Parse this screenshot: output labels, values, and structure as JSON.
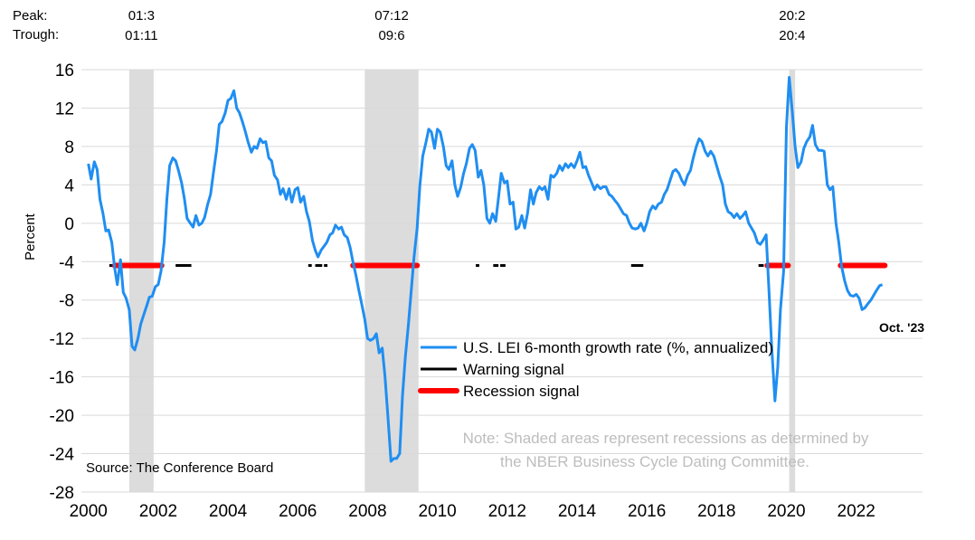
{
  "chart_data": {
    "type": "line",
    "ylabel": "Percent",
    "ylim": [
      -28,
      16
    ],
    "yticks": [
      16,
      12,
      8,
      4,
      0,
      -4,
      -8,
      -12,
      -16,
      -20,
      -24,
      -28
    ],
    "xlim": [
      1999.8,
      2023.9
    ],
    "xticks": [
      2000,
      2002,
      2004,
      2006,
      2008,
      2010,
      2012,
      2014,
      2016,
      2018,
      2020,
      2022
    ],
    "grid": true,
    "recessions_header": {
      "peak_label": "Peak:",
      "trough_label": "Trough:"
    },
    "recessions": [
      {
        "peak": "01:3",
        "trough": "01:11",
        "start": 2001.17,
        "end": 2001.87
      },
      {
        "peak": "07:12",
        "trough": "09:6",
        "start": 2007.92,
        "end": 2009.46
      },
      {
        "peak": "20:2",
        "trough": "20:4",
        "start": 2020.08,
        "end": 2020.25
      }
    ],
    "series": [
      {
        "name": "U.S. LEI 6-month growth rate (%, annualized)",
        "color": "#1f8ef1",
        "points": [
          [
            2000.0,
            6.2
          ],
          [
            2000.08,
            4.6
          ],
          [
            2000.17,
            6.4
          ],
          [
            2000.25,
            5.6
          ],
          [
            2000.33,
            2.5
          ],
          [
            2000.42,
            1.0
          ],
          [
            2000.5,
            -0.8
          ],
          [
            2000.58,
            -0.7
          ],
          [
            2000.67,
            -2.0
          ],
          [
            2000.75,
            -4.6
          ],
          [
            2000.83,
            -6.4
          ],
          [
            2000.92,
            -3.8
          ],
          [
            2001.0,
            -7.2
          ],
          [
            2001.08,
            -7.8
          ],
          [
            2001.17,
            -9.0
          ],
          [
            2001.25,
            -12.8
          ],
          [
            2001.33,
            -13.2
          ],
          [
            2001.42,
            -12.0
          ],
          [
            2001.5,
            -10.5
          ],
          [
            2001.58,
            -9.6
          ],
          [
            2001.67,
            -8.6
          ],
          [
            2001.75,
            -7.7
          ],
          [
            2001.83,
            -7.6
          ],
          [
            2001.92,
            -6.6
          ],
          [
            2002.0,
            -6.4
          ],
          [
            2002.08,
            -5.0
          ],
          [
            2002.17,
            -2.0
          ],
          [
            2002.25,
            2.5
          ],
          [
            2002.33,
            6.0
          ],
          [
            2002.42,
            6.8
          ],
          [
            2002.5,
            6.5
          ],
          [
            2002.58,
            5.5
          ],
          [
            2002.67,
            4.2
          ],
          [
            2002.75,
            2.6
          ],
          [
            2002.83,
            0.5
          ],
          [
            2002.92,
            0.0
          ],
          [
            2003.0,
            -0.4
          ],
          [
            2003.08,
            0.8
          ],
          [
            2003.17,
            -0.2
          ],
          [
            2003.25,
            0.0
          ],
          [
            2003.33,
            0.6
          ],
          [
            2003.42,
            2.0
          ],
          [
            2003.5,
            3.0
          ],
          [
            2003.58,
            5.2
          ],
          [
            2003.67,
            7.5
          ],
          [
            2003.75,
            10.3
          ],
          [
            2003.83,
            10.6
          ],
          [
            2003.92,
            11.5
          ],
          [
            2004.0,
            12.8
          ],
          [
            2004.08,
            13.0
          ],
          [
            2004.17,
            13.8
          ],
          [
            2004.25,
            12.0
          ],
          [
            2004.33,
            11.5
          ],
          [
            2004.42,
            10.5
          ],
          [
            2004.5,
            9.5
          ],
          [
            2004.58,
            8.4
          ],
          [
            2004.67,
            7.4
          ],
          [
            2004.75,
            8.0
          ],
          [
            2004.83,
            7.8
          ],
          [
            2004.92,
            8.8
          ],
          [
            2005.0,
            8.4
          ],
          [
            2005.08,
            8.5
          ],
          [
            2005.17,
            6.8
          ],
          [
            2005.25,
            6.5
          ],
          [
            2005.33,
            5.0
          ],
          [
            2005.42,
            4.5
          ],
          [
            2005.5,
            3.0
          ],
          [
            2005.58,
            3.6
          ],
          [
            2005.67,
            2.5
          ],
          [
            2005.75,
            3.6
          ],
          [
            2005.83,
            2.2
          ],
          [
            2005.92,
            3.5
          ],
          [
            2006.0,
            3.7
          ],
          [
            2006.08,
            2.2
          ],
          [
            2006.17,
            2.8
          ],
          [
            2006.25,
            1.2
          ],
          [
            2006.33,
            0.2
          ],
          [
            2006.42,
            -1.8
          ],
          [
            2006.5,
            -2.8
          ],
          [
            2006.58,
            -3.5
          ],
          [
            2006.67,
            -2.8
          ],
          [
            2006.75,
            -2.4
          ],
          [
            2006.83,
            -2.0
          ],
          [
            2006.92,
            -1.2
          ],
          [
            2007.0,
            -1.0
          ],
          [
            2007.08,
            -0.2
          ],
          [
            2007.17,
            -0.6
          ],
          [
            2007.25,
            -0.4
          ],
          [
            2007.33,
            -1.2
          ],
          [
            2007.42,
            -1.5
          ],
          [
            2007.5,
            -2.5
          ],
          [
            2007.58,
            -4.0
          ],
          [
            2007.67,
            -5.5
          ],
          [
            2007.75,
            -7.0
          ],
          [
            2007.83,
            -8.4
          ],
          [
            2007.92,
            -10.0
          ],
          [
            2008.0,
            -12.0
          ],
          [
            2008.08,
            -12.2
          ],
          [
            2008.17,
            -12.0
          ],
          [
            2008.25,
            -11.5
          ],
          [
            2008.33,
            -13.5
          ],
          [
            2008.42,
            -13.0
          ],
          [
            2008.5,
            -16.0
          ],
          [
            2008.58,
            -20.0
          ],
          [
            2008.67,
            -24.8
          ],
          [
            2008.75,
            -24.5
          ],
          [
            2008.83,
            -24.5
          ],
          [
            2008.92,
            -24.0
          ],
          [
            2009.0,
            -18.0
          ],
          [
            2009.08,
            -14.0
          ],
          [
            2009.17,
            -10.5
          ],
          [
            2009.25,
            -7.0
          ],
          [
            2009.33,
            -3.5
          ],
          [
            2009.42,
            -0.5
          ],
          [
            2009.5,
            4.0
          ],
          [
            2009.58,
            7.0
          ],
          [
            2009.67,
            8.4
          ],
          [
            2009.75,
            9.8
          ],
          [
            2009.83,
            9.5
          ],
          [
            2009.92,
            7.8
          ],
          [
            2010.0,
            9.8
          ],
          [
            2010.08,
            9.5
          ],
          [
            2010.17,
            8.0
          ],
          [
            2010.25,
            6.0
          ],
          [
            2010.33,
            5.6
          ],
          [
            2010.42,
            6.5
          ],
          [
            2010.5,
            4.0
          ],
          [
            2010.58,
            2.8
          ],
          [
            2010.67,
            3.8
          ],
          [
            2010.75,
            5.2
          ],
          [
            2010.83,
            6.2
          ],
          [
            2010.92,
            7.8
          ],
          [
            2011.0,
            8.2
          ],
          [
            2011.08,
            7.6
          ],
          [
            2011.17,
            4.8
          ],
          [
            2011.25,
            5.5
          ],
          [
            2011.33,
            4.0
          ],
          [
            2011.42,
            0.5
          ],
          [
            2011.5,
            0.0
          ],
          [
            2011.58,
            1.0
          ],
          [
            2011.67,
            0.2
          ],
          [
            2011.75,
            2.6
          ],
          [
            2011.83,
            5.2
          ],
          [
            2011.92,
            4.2
          ],
          [
            2012.0,
            4.4
          ],
          [
            2012.08,
            2.0
          ],
          [
            2012.17,
            2.2
          ],
          [
            2012.25,
            -0.6
          ],
          [
            2012.33,
            -0.4
          ],
          [
            2012.42,
            0.8
          ],
          [
            2012.5,
            -0.5
          ],
          [
            2012.58,
            1.0
          ],
          [
            2012.67,
            3.5
          ],
          [
            2012.75,
            2.0
          ],
          [
            2012.83,
            3.2
          ],
          [
            2012.92,
            3.8
          ],
          [
            2013.0,
            3.5
          ],
          [
            2013.08,
            3.8
          ],
          [
            2013.17,
            2.5
          ],
          [
            2013.25,
            5.0
          ],
          [
            2013.33,
            4.8
          ],
          [
            2013.42,
            5.2
          ],
          [
            2013.5,
            6.0
          ],
          [
            2013.58,
            5.5
          ],
          [
            2013.67,
            6.2
          ],
          [
            2013.75,
            5.8
          ],
          [
            2013.83,
            6.2
          ],
          [
            2013.92,
            5.8
          ],
          [
            2014.0,
            6.5
          ],
          [
            2014.08,
            7.4
          ],
          [
            2014.17,
            5.8
          ],
          [
            2014.25,
            5.9
          ],
          [
            2014.33,
            5.0
          ],
          [
            2014.42,
            4.2
          ],
          [
            2014.5,
            3.5
          ],
          [
            2014.58,
            4.0
          ],
          [
            2014.67,
            3.6
          ],
          [
            2014.75,
            3.8
          ],
          [
            2014.83,
            3.8
          ],
          [
            2014.92,
            3.0
          ],
          [
            2015.0,
            2.8
          ],
          [
            2015.08,
            2.4
          ],
          [
            2015.17,
            2.0
          ],
          [
            2015.25,
            1.5
          ],
          [
            2015.33,
            1.0
          ],
          [
            2015.42,
            0.8
          ],
          [
            2015.5,
            0.0
          ],
          [
            2015.58,
            -0.5
          ],
          [
            2015.67,
            -0.6
          ],
          [
            2015.75,
            -0.5
          ],
          [
            2015.83,
            0.0
          ],
          [
            2015.92,
            -0.8
          ],
          [
            2016.0,
            0.0
          ],
          [
            2016.08,
            1.2
          ],
          [
            2016.17,
            1.8
          ],
          [
            2016.25,
            1.5
          ],
          [
            2016.33,
            2.0
          ],
          [
            2016.42,
            2.2
          ],
          [
            2016.5,
            3.0
          ],
          [
            2016.58,
            3.5
          ],
          [
            2016.67,
            4.5
          ],
          [
            2016.75,
            5.4
          ],
          [
            2016.83,
            5.6
          ],
          [
            2016.92,
            5.2
          ],
          [
            2017.0,
            4.5
          ],
          [
            2017.08,
            4.0
          ],
          [
            2017.17,
            5.0
          ],
          [
            2017.25,
            5.5
          ],
          [
            2017.33,
            6.8
          ],
          [
            2017.42,
            8.0
          ],
          [
            2017.5,
            8.8
          ],
          [
            2017.58,
            8.5
          ],
          [
            2017.67,
            7.5
          ],
          [
            2017.75,
            7.0
          ],
          [
            2017.83,
            7.5
          ],
          [
            2017.92,
            7.0
          ],
          [
            2018.0,
            6.0
          ],
          [
            2018.08,
            5.0
          ],
          [
            2018.17,
            4.0
          ],
          [
            2018.25,
            2.0
          ],
          [
            2018.33,
            1.2
          ],
          [
            2018.42,
            1.0
          ],
          [
            2018.5,
            0.6
          ],
          [
            2018.58,
            1.0
          ],
          [
            2018.67,
            0.5
          ],
          [
            2018.75,
            0.8
          ],
          [
            2018.83,
            1.2
          ],
          [
            2018.92,
            0.0
          ],
          [
            2019.0,
            -0.5
          ],
          [
            2019.08,
            -1.0
          ],
          [
            2019.17,
            -2.0
          ],
          [
            2019.25,
            -2.2
          ],
          [
            2019.33,
            -1.8
          ],
          [
            2019.42,
            -1.2
          ],
          [
            2019.5,
            -7.0
          ],
          [
            2019.58,
            -13.0
          ],
          [
            2019.67,
            -18.5
          ],
          [
            2019.75,
            -15.0
          ],
          [
            2019.83,
            -9.0
          ],
          [
            2019.92,
            -5.0
          ],
          [
            2020.0,
            10.0
          ],
          [
            2020.08,
            15.2
          ],
          [
            2020.17,
            11.5
          ],
          [
            2020.25,
            8.0
          ],
          [
            2020.33,
            5.8
          ],
          [
            2020.42,
            6.4
          ],
          [
            2020.5,
            7.8
          ],
          [
            2020.58,
            8.5
          ],
          [
            2020.67,
            9.0
          ],
          [
            2020.75,
            10.2
          ],
          [
            2020.83,
            8.2
          ],
          [
            2020.92,
            7.6
          ],
          [
            2021.0,
            7.6
          ],
          [
            2021.08,
            7.5
          ],
          [
            2021.17,
            4.0
          ],
          [
            2021.25,
            3.5
          ],
          [
            2021.33,
            3.8
          ],
          [
            2021.42,
            0.0
          ],
          [
            2021.5,
            -2.0
          ],
          [
            2021.58,
            -4.5
          ],
          [
            2021.67,
            -6.0
          ],
          [
            2021.75,
            -7.0
          ],
          [
            2021.83,
            -7.5
          ],
          [
            2021.92,
            -7.6
          ],
          [
            2022.0,
            -7.4
          ],
          [
            2022.08,
            -7.8
          ],
          [
            2022.17,
            -9.0
          ],
          [
            2022.25,
            -8.8
          ],
          [
            2022.33,
            -8.4
          ],
          [
            2022.42,
            -8.0
          ],
          [
            2022.5,
            -7.5
          ],
          [
            2022.58,
            -7.0
          ],
          [
            2022.67,
            -6.5
          ],
          [
            2022.75,
            -6.4
          ]
        ]
      },
      {
        "name": "Warning signal",
        "color": "#000000",
        "value": -4.4,
        "ranges": [
          [
            2000.6,
            2000.8
          ],
          [
            2002.5,
            2002.95
          ],
          [
            2006.3,
            2006.4
          ],
          [
            2006.5,
            2006.7
          ],
          [
            2006.75,
            2006.85
          ],
          [
            2011.1,
            2011.2
          ],
          [
            2011.6,
            2011.75
          ],
          [
            2011.8,
            2011.95
          ],
          [
            2015.55,
            2015.9
          ],
          [
            2019.2,
            2019.35
          ]
        ]
      },
      {
        "name": "Recession signal",
        "color": "#ff0000",
        "value": -4.4,
        "ranges": [
          [
            2000.75,
            2002.1
          ],
          [
            2007.58,
            2009.42
          ],
          [
            2019.45,
            2020.05
          ],
          [
            2021.55,
            2022.82
          ]
        ]
      }
    ],
    "annotations": [
      {
        "text": "Oct. '23"
      },
      {
        "text": "Source: The Conference Board"
      },
      {
        "text": "Note: Shaded areas represent recessions as determined by"
      },
      {
        "text": "the NBER Business Cycle Dating Committee."
      }
    ]
  }
}
